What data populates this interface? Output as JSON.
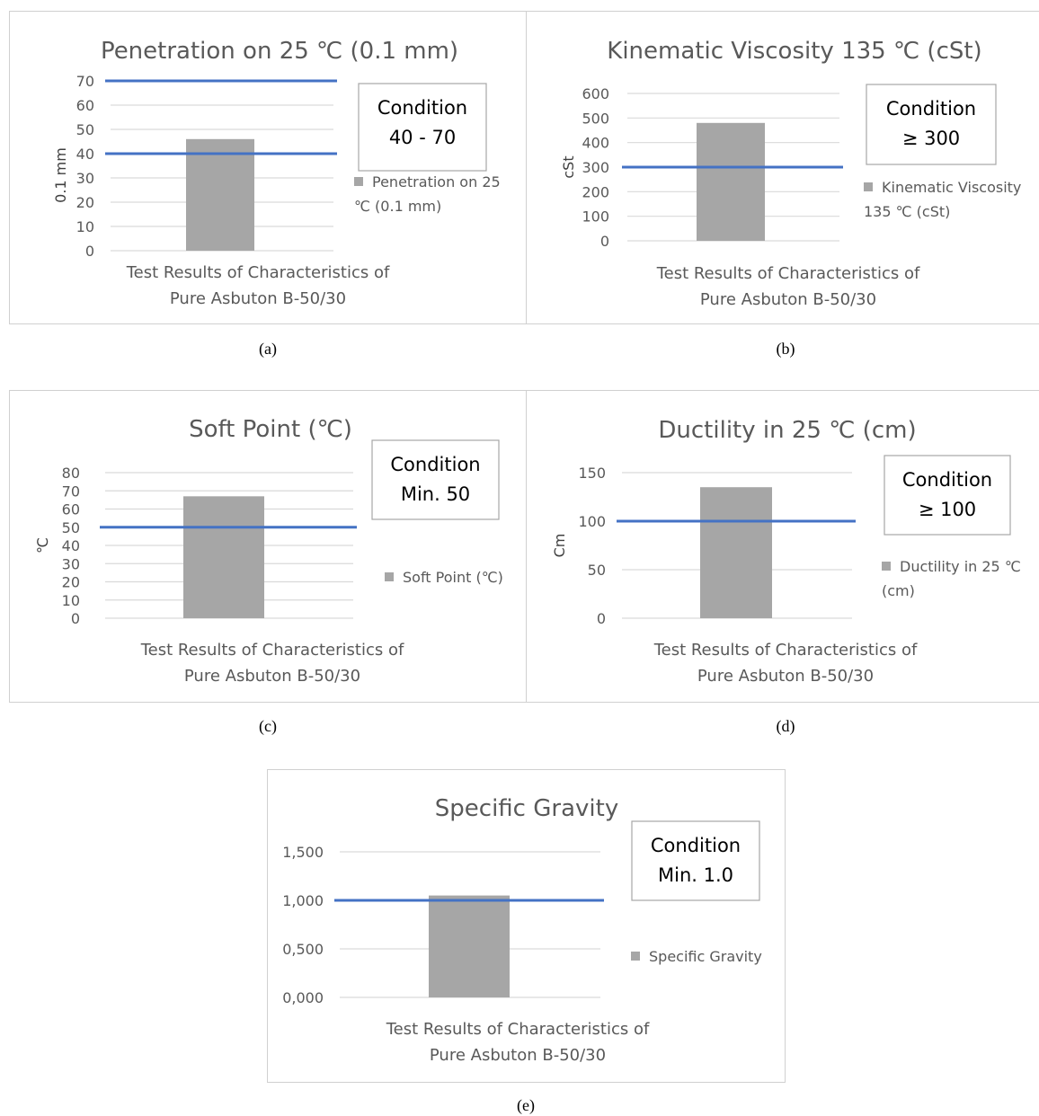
{
  "colors": {
    "bar": "#a6a6a6",
    "limit_line": "#4472c4",
    "grid": "#d9d9d9",
    "text": "#595959"
  },
  "chart_data": [
    {
      "id": "a",
      "type": "bar",
      "caption": "(a)",
      "title": "Penetration on 25 ℃ (0.1 mm)",
      "ylabel": "0.1 mm",
      "category_lines": [
        "Test Results of Characteristics of",
        "Pure Asbuton B-50/30"
      ],
      "series": [
        {
          "name": "Penetration on 25 ℃ (0.1 mm)",
          "values": [
            46
          ]
        }
      ],
      "legend_lines": [
        "Penetration on 25",
        "℃ (0.1 mm)"
      ],
      "ylim": [
        0,
        70
      ],
      "yticks": [
        0,
        10,
        20,
        30,
        40,
        50,
        60,
        70
      ],
      "ytick_labels": [
        "0",
        "10",
        "20",
        "30",
        "40",
        "50",
        "60",
        "70"
      ],
      "limit_lines": [
        40,
        70
      ],
      "condition_lines": [
        "Condition",
        "40 - 70"
      ],
      "grid": true,
      "legend_position": "right"
    },
    {
      "id": "b",
      "type": "bar",
      "caption": "(b)",
      "title": "Kinematic Viscosity 135 ℃ (cSt)",
      "ylabel": "cSt",
      "category_lines": [
        "Test Results of Characteristics of",
        "Pure Asbuton B-50/30"
      ],
      "series": [
        {
          "name": "Kinematic Viscosity 135 ℃ (cSt)",
          "values": [
            480
          ]
        }
      ],
      "legend_lines": [
        "Kinematic Viscosity",
        "135 ℃ (cSt)"
      ],
      "ylim": [
        0,
        600
      ],
      "yticks": [
        0,
        100,
        200,
        300,
        400,
        500,
        600
      ],
      "ytick_labels": [
        "0",
        "100",
        "200",
        "300",
        "400",
        "500",
        "600"
      ],
      "limit_lines": [
        300
      ],
      "condition_lines": [
        "Condition",
        "≥ 300"
      ],
      "grid": true,
      "legend_position": "right"
    },
    {
      "id": "c",
      "type": "bar",
      "caption": "(c)",
      "title": "Soft Point (℃)",
      "ylabel": "℃",
      "category_lines": [
        "Test Results of Characteristics of",
        "Pure Asbuton B-50/30"
      ],
      "series": [
        {
          "name": "Soft Point (℃)",
          "values": [
            67
          ]
        }
      ],
      "legend_lines": [
        "Soft Point (℃)"
      ],
      "ylim": [
        0,
        80
      ],
      "yticks": [
        0,
        10,
        20,
        30,
        40,
        50,
        60,
        70,
        80
      ],
      "ytick_labels": [
        "0",
        "10",
        "20",
        "30",
        "40",
        "50",
        "60",
        "70",
        "80"
      ],
      "limit_lines": [
        50
      ],
      "condition_lines": [
        "Condition",
        "Min. 50"
      ],
      "grid": true,
      "legend_position": "right"
    },
    {
      "id": "d",
      "type": "bar",
      "caption": "(d)",
      "title": "Ductility in 25 ℃ (cm)",
      "ylabel": "Cm",
      "category_lines": [
        "Test Results of Characteristics of",
        "Pure Asbuton B-50/30"
      ],
      "series": [
        {
          "name": "Ductility in 25 ℃ (cm)",
          "values": [
            135
          ]
        }
      ],
      "legend_lines": [
        "Ductility in 25 ℃",
        "(cm)"
      ],
      "ylim": [
        0,
        150
      ],
      "yticks": [
        0,
        50,
        100,
        150
      ],
      "ytick_labels": [
        "0",
        "50",
        "100",
        "150"
      ],
      "limit_lines": [
        100
      ],
      "condition_lines": [
        "Condition",
        "≥ 100"
      ],
      "grid": true,
      "legend_position": "right"
    },
    {
      "id": "e",
      "type": "bar",
      "caption": "(e)",
      "title": "Specific Gravity",
      "ylabel": "",
      "category_lines": [
        "Test Results of Characteristics of",
        "Pure Asbuton B-50/30"
      ],
      "series": [
        {
          "name": "Specific Gravity",
          "values": [
            1.05
          ]
        }
      ],
      "legend_lines": [
        "Specific Gravity"
      ],
      "ylim": [
        0,
        1.5
      ],
      "yticks": [
        0,
        0.5,
        1.0,
        1.5
      ],
      "ytick_labels": [
        "0,000",
        "0,500",
        "1,000",
        "1,500"
      ],
      "limit_lines": [
        1.0
      ],
      "condition_lines": [
        "Condition",
        "Min. 1.0"
      ],
      "grid": true,
      "legend_position": "right"
    }
  ]
}
